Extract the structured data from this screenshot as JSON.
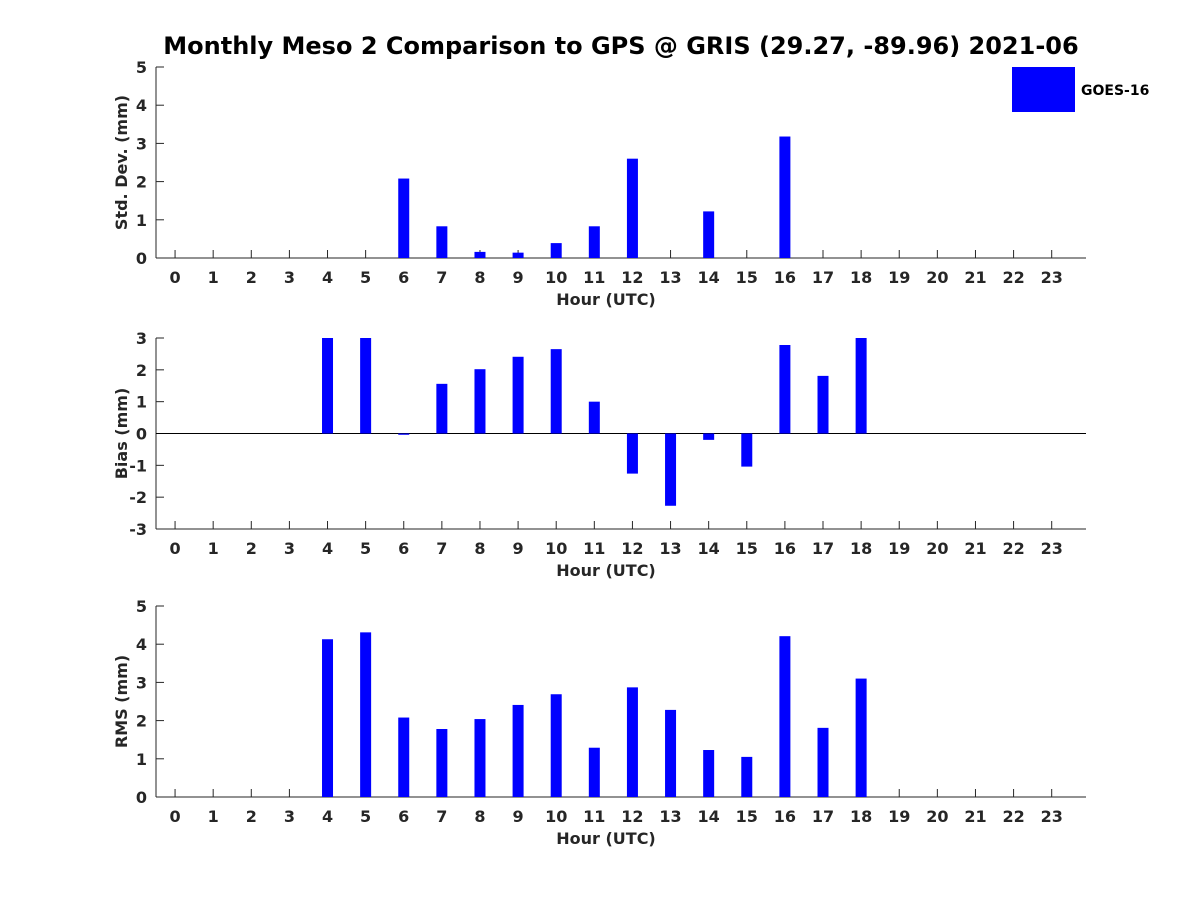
{
  "title": "Monthly Meso 2 Comparison to GPS @ GRIS (29.27, -89.96) 2021-06",
  "legend": {
    "label": "GOES-16",
    "color": "#0000ff",
    "placement": "top-right"
  },
  "colors": {
    "bar": "#0000ff",
    "axis": "#262626",
    "zero_line": "#000000"
  },
  "chart_data": [
    {
      "type": "bar",
      "xlabel": "Hour (UTC)",
      "ylabel": "Std. Dev. (mm)",
      "ylim": [
        0,
        5
      ],
      "yticks": [
        0,
        1,
        2,
        3,
        4,
        5
      ],
      "categories": [
        "0",
        "1",
        "2",
        "3",
        "4",
        "5",
        "6",
        "7",
        "8",
        "9",
        "10",
        "11",
        "12",
        "13",
        "14",
        "15",
        "16",
        "17",
        "18",
        "19",
        "20",
        "21",
        "22",
        "23"
      ],
      "series": [
        {
          "name": "GOES-16",
          "values": [
            null,
            null,
            null,
            null,
            null,
            null,
            2.08,
            0.83,
            0.16,
            0.14,
            0.39,
            0.83,
            2.6,
            null,
            1.22,
            null,
            3.18,
            null,
            null,
            null,
            null,
            null,
            null,
            null
          ]
        }
      ]
    },
    {
      "type": "bar",
      "xlabel": "Hour (UTC)",
      "ylabel": "Bias (mm)",
      "ylim": [
        -3,
        3
      ],
      "yticks": [
        -3,
        -2,
        -1,
        0,
        1,
        2,
        3
      ],
      "zero_line": true,
      "categories": [
        "0",
        "1",
        "2",
        "3",
        "4",
        "5",
        "6",
        "7",
        "8",
        "9",
        "10",
        "11",
        "12",
        "13",
        "14",
        "15",
        "16",
        "17",
        "18",
        "19",
        "20",
        "21",
        "22",
        "23"
      ],
      "series": [
        {
          "name": "GOES-16",
          "values": [
            null,
            null,
            null,
            null,
            3.0,
            3.0,
            -0.04,
            1.56,
            2.02,
            2.41,
            2.65,
            1.0,
            -1.26,
            -2.27,
            -0.2,
            -1.04,
            2.78,
            1.81,
            3.0,
            null,
            null,
            null,
            null,
            null
          ]
        }
      ]
    },
    {
      "type": "bar",
      "xlabel": "Hour (UTC)",
      "ylabel": "RMS (mm)",
      "ylim": [
        0,
        5
      ],
      "yticks": [
        0,
        1,
        2,
        3,
        4,
        5
      ],
      "categories": [
        "0",
        "1",
        "2",
        "3",
        "4",
        "5",
        "6",
        "7",
        "8",
        "9",
        "10",
        "11",
        "12",
        "13",
        "14",
        "15",
        "16",
        "17",
        "18",
        "19",
        "20",
        "21",
        "22",
        "23"
      ],
      "series": [
        {
          "name": "GOES-16",
          "values": [
            null,
            null,
            null,
            null,
            4.13,
            4.31,
            2.08,
            1.78,
            2.04,
            2.41,
            2.69,
            1.29,
            2.87,
            2.28,
            1.23,
            1.05,
            4.21,
            1.81,
            3.1,
            null,
            null,
            null,
            null,
            null
          ]
        }
      ]
    }
  ]
}
